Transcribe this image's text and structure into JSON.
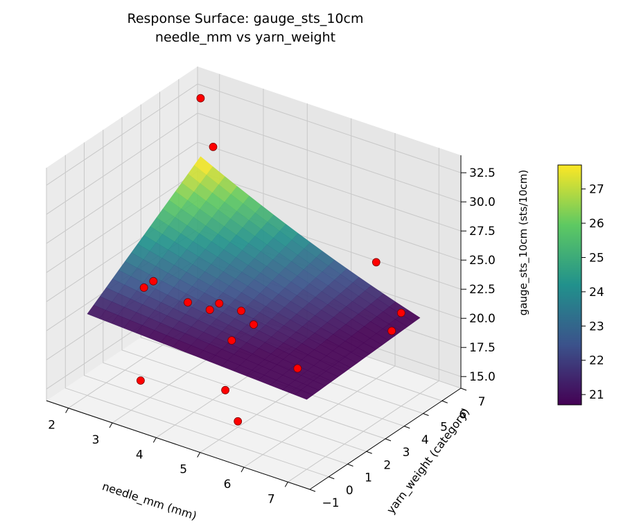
{
  "chart_data": {
    "type": "surface3d",
    "title": "Response Surface: gauge_sts_10cm",
    "subtitle": "needle_mm vs yarn_weight",
    "xlabel": "needle_mm (mm)",
    "ylabel": "yarn_weight (category)",
    "zlabel": "gauge_sts_10cm (sts/10cm)",
    "xlim": [
      1.5,
      7.5
    ],
    "ylim": [
      -1,
      7
    ],
    "zlim": [
      14,
      34
    ],
    "x_ticks": [
      "2",
      "3",
      "4",
      "5",
      "6",
      "7"
    ],
    "y_ticks": [
      "−1",
      "0",
      "1",
      "2",
      "3",
      "4",
      "5",
      "6",
      "7"
    ],
    "z_ticks": [
      "15.0",
      "17.5",
      "20.0",
      "22.5",
      "25.0",
      "27.5",
      "30.0",
      "32.5"
    ],
    "colormap": "viridis",
    "colorbar": {
      "min": 20.7,
      "max": 27.7,
      "ticks": [
        "21",
        "22",
        "23",
        "24",
        "25",
        "26",
        "27"
      ],
      "colors": [
        "#440154",
        "#3b528b",
        "#21918c",
        "#5ec962",
        "#fde725"
      ]
    },
    "surface": {
      "x_range": [
        2.0,
        7.0
      ],
      "y_range": [
        0,
        6
      ],
      "z_corners": {
        "x_min_y_min": 21.0,
        "x_max_y_min": 20.0,
        "x_min_y_max": 28.0,
        "x_max_y_max": 20.5
      },
      "curvature": 1.5
    },
    "points": [
      {
        "x": 2.0,
        "y": 6.0,
        "z": 33.0
      },
      {
        "x": 2.5,
        "y": 5.5,
        "z": 30.0
      },
      {
        "x": 2.0,
        "y": 3.0,
        "z": 20.0
      },
      {
        "x": 2.0,
        "y": 3.5,
        "z": 20.0
      },
      {
        "x": 3.0,
        "y": 3.0,
        "z": 20.0
      },
      {
        "x": 3.5,
        "y": 3.0,
        "z": 20.0
      },
      {
        "x": 3.5,
        "y": 3.5,
        "z": 20.0
      },
      {
        "x": 4.0,
        "y": 3.5,
        "z": 20.0
      },
      {
        "x": 4.0,
        "y": 3.0,
        "z": 18.0
      },
      {
        "x": 4.5,
        "y": 3.0,
        "z": 20.0
      },
      {
        "x": 6.0,
        "y": 6.0,
        "z": 24.0
      },
      {
        "x": 7.0,
        "y": 5.0,
        "z": 22.0
      },
      {
        "x": 7.0,
        "y": 4.5,
        "z": 21.0
      },
      {
        "x": 3.0,
        "y": 0.5,
        "z": 16.0
      },
      {
        "x": 4.5,
        "y": 1.5,
        "z": 16.0
      },
      {
        "x": 5.0,
        "y": 1.0,
        "z": 14.5
      },
      {
        "x": 5.5,
        "y": 3.0,
        "z": 17.5
      }
    ],
    "point_color": "#ff0000",
    "grid": true
  }
}
